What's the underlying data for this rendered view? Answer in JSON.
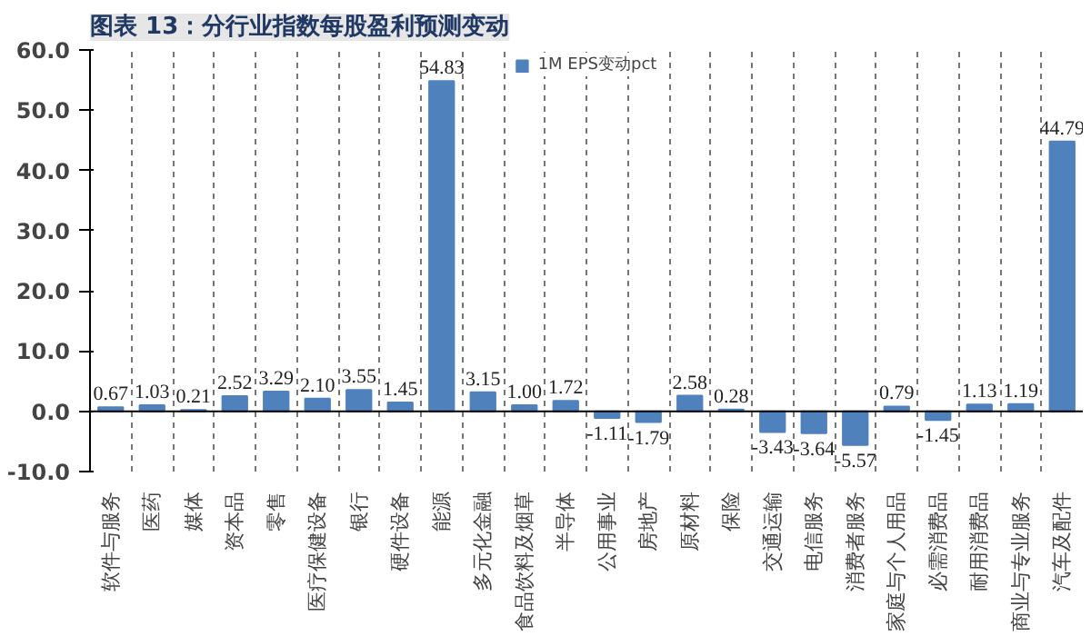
{
  "chart_data": {
    "type": "bar",
    "title": "图表 13：分行业指数每股盈利预测变动",
    "categories": [
      "软件与服务",
      "医药",
      "媒体",
      "资本品",
      "零售",
      "医疗保健设备",
      "银行",
      "硬件设备",
      "能源",
      "多元化金融",
      "食品饮料及烟草",
      "半导体",
      "公用事业",
      "房地产",
      "原材料",
      "保险",
      "交通运输",
      "电信服务",
      "消费者服务",
      "家庭与个人用品",
      "必需消费品",
      "耐用消费品",
      "商业与专业服务",
      "汽车及配件"
    ],
    "series": [
      {
        "name": "1M EPS变动pct",
        "color": "#4f81bd",
        "values": [
          0.67,
          1.03,
          0.21,
          2.52,
          3.29,
          2.1,
          3.55,
          1.45,
          54.83,
          3.15,
          1.0,
          1.72,
          -1.11,
          -1.79,
          2.58,
          0.28,
          -3.43,
          -3.64,
          -5.57,
          0.79,
          -1.45,
          1.13,
          1.19,
          44.79
        ],
        "value_labels": [
          "0.67",
          "1.03",
          "0.21",
          "2.52",
          "3.29",
          "2.10",
          "3.55",
          "1.45",
          "54.83",
          "3.15",
          "1.00",
          "1.72",
          "-1.11",
          "-1.79",
          "2.58",
          "0.28",
          "-3.43",
          "-3.64",
          "-5.57",
          "0.79",
          "-1.45",
          "1.13",
          "1.19",
          "44.79"
        ]
      }
    ],
    "ylim": [
      -10,
      60
    ],
    "yticks": [
      {
        "value": -10,
        "label": "-10.0"
      },
      {
        "value": 0,
        "label": "0.0"
      },
      {
        "value": 10,
        "label": "10.0"
      },
      {
        "value": 20,
        "label": "20.0"
      },
      {
        "value": 30,
        "label": "30.0"
      },
      {
        "value": 40,
        "label": "40.0"
      },
      {
        "value": 50,
        "label": "50.0"
      },
      {
        "value": 60,
        "label": "60.0"
      }
    ],
    "grid": "x",
    "legend": "top"
  }
}
